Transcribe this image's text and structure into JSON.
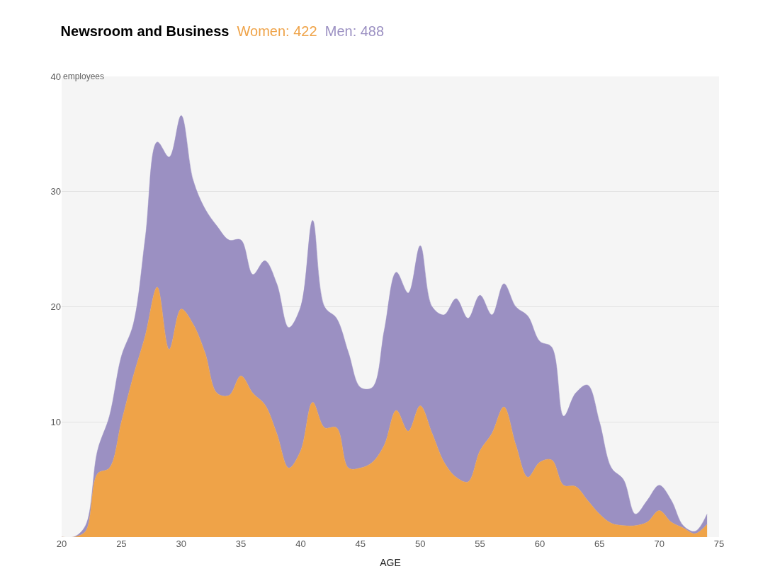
{
  "chart_data": {
    "type": "area",
    "stacked": true,
    "title": "Newsroom and Business",
    "ylabel": "employees",
    "xlabel": "AGE",
    "x": [
      20,
      21,
      22,
      23,
      24,
      25,
      26,
      27,
      28,
      29,
      30,
      31,
      32,
      33,
      34,
      35,
      36,
      37,
      38,
      39,
      40,
      41,
      42,
      43,
      44,
      45,
      46,
      47,
      48,
      49,
      50,
      51,
      52,
      53,
      54,
      55,
      56,
      57,
      58,
      59,
      60,
      61,
      62,
      63,
      64,
      65,
      66,
      67,
      68,
      69,
      70,
      71,
      72,
      73,
      74
    ],
    "series": [
      {
        "name": "Women: 422",
        "color": "#efa348",
        "values": [
          0,
          0,
          0.5,
          5.5,
          6,
          10,
          14,
          17.5,
          21.7,
          16.3,
          19.8,
          18.5,
          16,
          12.5,
          12.3,
          14,
          12.5,
          11.5,
          9,
          6,
          7.5,
          11.7,
          9.5,
          9.5,
          6,
          6,
          6.5,
          8,
          11,
          9.2,
          11.4,
          9,
          6.5,
          5.2,
          4.8,
          7.5,
          9,
          11.3,
          8,
          5.2,
          6.5,
          6.7,
          4.5,
          4.4,
          3.2,
          2,
          1.2,
          1,
          1,
          1.3,
          2.3,
          1.3,
          0.8,
          0.3,
          1.1
        ]
      },
      {
        "name": "Men: 488",
        "color": "#9b90c2",
        "values": [
          0,
          0,
          0.5,
          2,
          4.5,
          5.7,
          4.5,
          8.5,
          12.6,
          16.7,
          16.8,
          12.5,
          12.5,
          14.5,
          13.5,
          11.8,
          10.3,
          12.5,
          13,
          12.2,
          12.5,
          15.8,
          10.5,
          9.5,
          10,
          7,
          6.5,
          10,
          12,
          12,
          13.9,
          11,
          12.8,
          15.5,
          14.2,
          13.5,
          10.3,
          10.7,
          12,
          14,
          10.5,
          9.8,
          6,
          8.1,
          10,
          8,
          4.8,
          4,
          1,
          1.9,
          2.2,
          1.9,
          0.2,
          0.2,
          0.9
        ]
      }
    ],
    "xlim": [
      20,
      75
    ],
    "xticks": [
      20,
      25,
      30,
      35,
      40,
      45,
      50,
      55,
      60,
      65,
      70,
      75
    ],
    "ylim": [
      0,
      40
    ],
    "yticks": [
      10,
      20,
      30,
      40
    ],
    "grid": "y"
  }
}
